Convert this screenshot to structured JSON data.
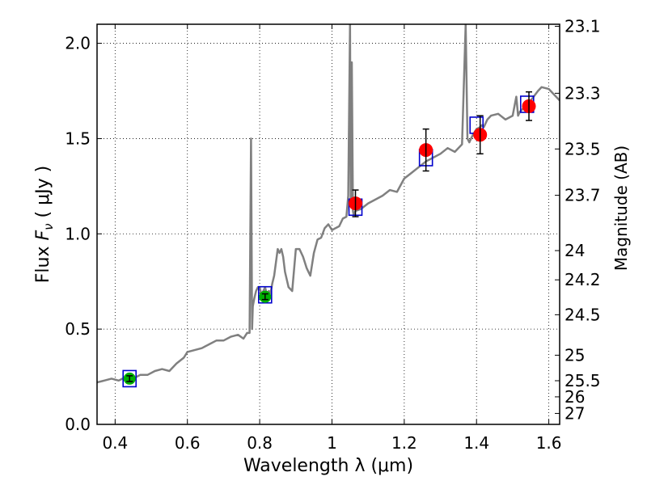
{
  "chart_data": {
    "type": "scatter",
    "xlabel": "Wavelength  λ (μm)",
    "ylabel_prefix": "Flux  ",
    "ylabel_symbol": "F",
    "ylabel_sub": "ν",
    "ylabel_units": "  ( μJy )",
    "y2label": "Magnitude (AB)",
    "xlim": [
      0.35,
      1.63
    ],
    "ylim": [
      0.0,
      2.1
    ],
    "xticks": [
      0.4,
      0.6,
      0.8,
      1.0,
      1.2,
      1.4,
      1.6
    ],
    "xtick_labels": [
      "0.4",
      "0.6",
      "0.8",
      "1",
      "1.2",
      "1.4",
      "1.6"
    ],
    "yticks": [
      0.0,
      0.5,
      1.0,
      1.5,
      2.0
    ],
    "ytick_labels": [
      "0.0",
      "0.5",
      "1.0",
      "1.5",
      "2.0"
    ],
    "mag_ticks": [
      {
        "label": "23.1",
        "mag": 23.1
      },
      {
        "label": "23.3",
        "mag": 23.3
      },
      {
        "label": "23.5",
        "mag": 23.5
      },
      {
        "label": "23.7",
        "mag": 23.7
      },
      {
        "label": "24",
        "mag": 24.0
      },
      {
        "label": "24.2",
        "mag": 24.2
      },
      {
        "label": "24.5",
        "mag": 24.5
      },
      {
        "label": "25",
        "mag": 25.0
      },
      {
        "label": "25.5",
        "mag": 25.5
      },
      {
        "label": "26",
        "mag": 26.0
      },
      {
        "label": "27",
        "mag": 27.0
      }
    ],
    "grid": true,
    "colors": {
      "model": "#808080",
      "observed_optical": "#00b000",
      "observed_nir": "#ff0000",
      "model_box": "#0000cc",
      "errorbar": "#000000"
    },
    "series": [
      {
        "kind": "model_spectrum",
        "x": [
          0.35,
          0.37,
          0.39,
          0.41,
          0.43,
          0.45,
          0.47,
          0.49,
          0.51,
          0.53,
          0.55,
          0.57,
          0.59,
          0.6,
          0.62,
          0.64,
          0.66,
          0.68,
          0.7,
          0.72,
          0.74,
          0.755,
          0.765,
          0.772,
          0.776,
          0.779,
          0.781,
          0.785,
          0.79,
          0.795,
          0.8,
          0.805,
          0.81,
          0.815,
          0.82,
          0.825,
          0.83,
          0.835,
          0.84,
          0.845,
          0.85,
          0.855,
          0.86,
          0.865,
          0.87,
          0.88,
          0.89,
          0.9,
          0.91,
          0.92,
          0.93,
          0.94,
          0.95,
          0.96,
          0.97,
          0.98,
          0.99,
          1.0,
          1.01,
          1.02,
          1.03,
          1.04,
          1.045,
          1.05,
          1.052,
          1.055,
          1.058,
          1.06,
          1.065,
          1.08,
          1.1,
          1.12,
          1.14,
          1.16,
          1.18,
          1.2,
          1.22,
          1.24,
          1.26,
          1.28,
          1.3,
          1.32,
          1.34,
          1.36,
          1.37,
          1.375,
          1.38,
          1.385,
          1.39,
          1.4,
          1.41,
          1.415,
          1.42,
          1.425,
          1.43,
          1.44,
          1.46,
          1.48,
          1.5,
          1.51,
          1.515,
          1.52,
          1.53,
          1.55,
          1.57,
          1.58,
          1.6,
          1.63
        ],
        "y": [
          0.22,
          0.23,
          0.24,
          0.23,
          0.25,
          0.24,
          0.26,
          0.26,
          0.28,
          0.29,
          0.28,
          0.32,
          0.35,
          0.38,
          0.39,
          0.4,
          0.42,
          0.44,
          0.44,
          0.46,
          0.47,
          0.45,
          0.48,
          0.48,
          1.5,
          0.5,
          0.62,
          0.66,
          0.7,
          0.72,
          0.72,
          0.68,
          0.7,
          0.72,
          0.68,
          0.7,
          0.69,
          0.74,
          0.78,
          0.85,
          0.92,
          0.9,
          0.92,
          0.88,
          0.8,
          0.72,
          0.7,
          0.92,
          0.92,
          0.88,
          0.82,
          0.78,
          0.9,
          0.97,
          0.98,
          1.03,
          1.05,
          1.02,
          1.03,
          1.04,
          1.08,
          1.09,
          1.2,
          2.1,
          1.15,
          1.9,
          1.12,
          1.1,
          1.12,
          1.13,
          1.16,
          1.18,
          1.2,
          1.23,
          1.22,
          1.29,
          1.32,
          1.35,
          1.38,
          1.4,
          1.42,
          1.45,
          1.43,
          1.47,
          2.1,
          1.5,
          1.48,
          1.5,
          1.52,
          1.55,
          1.56,
          1.57,
          1.56,
          1.58,
          1.6,
          1.62,
          1.63,
          1.6,
          1.62,
          1.72,
          1.62,
          1.64,
          1.66,
          1.7,
          1.75,
          1.77,
          1.76,
          1.7
        ]
      },
      {
        "kind": "model_photometry",
        "x": [
          0.44,
          0.815,
          1.065,
          1.26,
          1.4,
          1.54
        ],
        "y": [
          0.24,
          0.68,
          1.14,
          1.4,
          1.57,
          1.68
        ]
      },
      {
        "kind": "observed_optical",
        "x": [
          0.44,
          0.815
        ],
        "y": [
          0.24,
          0.67
        ],
        "yerr": [
          0.015,
          0.015
        ]
      },
      {
        "kind": "observed_nir",
        "x": [
          1.065,
          1.26,
          1.41,
          1.545
        ],
        "y": [
          1.16,
          1.44,
          1.52,
          1.67
        ],
        "yerr": [
          0.07,
          0.11,
          0.1,
          0.075
        ]
      }
    ]
  }
}
